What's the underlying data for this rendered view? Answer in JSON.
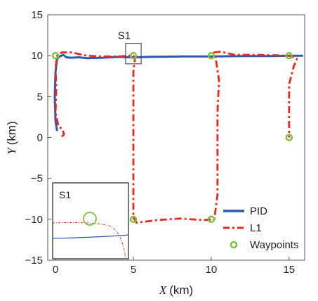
{
  "chart_data": {
    "type": "line",
    "title": "",
    "xlabel_var": "X",
    "xlabel_unit": "(km)",
    "ylabel_var": "Y",
    "ylabel_unit": "(km)",
    "xlim": [
      -0.5,
      16
    ],
    "ylim": [
      -15,
      15
    ],
    "xticks": [
      0,
      5,
      10,
      15
    ],
    "yticks": [
      15,
      10,
      5,
      0,
      -5,
      -10,
      -15
    ],
    "ytick_labels": [
      "15",
      "10",
      "5",
      "0",
      "−5",
      "−10",
      "−15"
    ],
    "grid": false,
    "legend_position": "lower-right",
    "series": [
      {
        "name": "PID",
        "color": "#2f57b3",
        "style": "solid",
        "x": [
          0.1,
          0.0,
          -0.05,
          0.0,
          0.1,
          0.25,
          0.5,
          0.7,
          1.0,
          1.5,
          2.0,
          3.0,
          4.0,
          5.0,
          6.0,
          8.0,
          10.0,
          12.0,
          14.0,
          15.0,
          15.5,
          15.9
        ],
        "y": [
          0.8,
          2.0,
          5.0,
          8.0,
          9.6,
          9.9,
          10.1,
          9.8,
          9.75,
          9.8,
          9.7,
          9.75,
          9.85,
          9.8,
          9.85,
          9.9,
          9.9,
          9.95,
          9.95,
          10.0,
          10.0,
          10.0
        ]
      },
      {
        "name": "L1",
        "color": "#e8291c",
        "style": "dashdot",
        "x": [
          0.4,
          0.55,
          0.4,
          0.2,
          0.0,
          0.05,
          0.0,
          0.1,
          0.4,
          1.0,
          2.0,
          3.0,
          4.0,
          4.8,
          5.0,
          5.1,
          5.0,
          5.0,
          5.0,
          5.0,
          5.0,
          5.2,
          5.7,
          6.5,
          8.0,
          9.5,
          10.2,
          10.4,
          10.4,
          10.4,
          10.5,
          10.3,
          10.2,
          10.6,
          11.5,
          13.0,
          15.0,
          15.5,
          15.3,
          15.0,
          15.0,
          15.0
        ],
        "y": [
          0.1,
          0.4,
          1.1,
          1.3,
          3.0,
          6.0,
          8.5,
          10.0,
          10.4,
          10.4,
          10.0,
          9.9,
          9.9,
          10.0,
          10.0,
          9.6,
          8.0,
          4.0,
          0.0,
          -5.0,
          -9.8,
          -10.4,
          -10.3,
          -10.1,
          -9.9,
          -10.1,
          -10.0,
          -7.0,
          -2.0,
          3.0,
          7.0,
          9.5,
          10.4,
          10.5,
          10.1,
          10.1,
          10.0,
          9.6,
          8.7,
          6.5,
          3.0,
          0.0
        ]
      }
    ],
    "waypoints": {
      "name": "Waypoints",
      "color": "#7dc143",
      "x": [
        0,
        5,
        10,
        15,
        5,
        10,
        15
      ],
      "y": [
        10,
        10,
        10,
        10,
        -10,
        -10,
        0
      ]
    },
    "zoom_box": {
      "label": "S1",
      "x": [
        4.5,
        5.5
      ],
      "y": [
        9,
        11.5
      ]
    },
    "inset": {
      "title": "S1"
    }
  }
}
